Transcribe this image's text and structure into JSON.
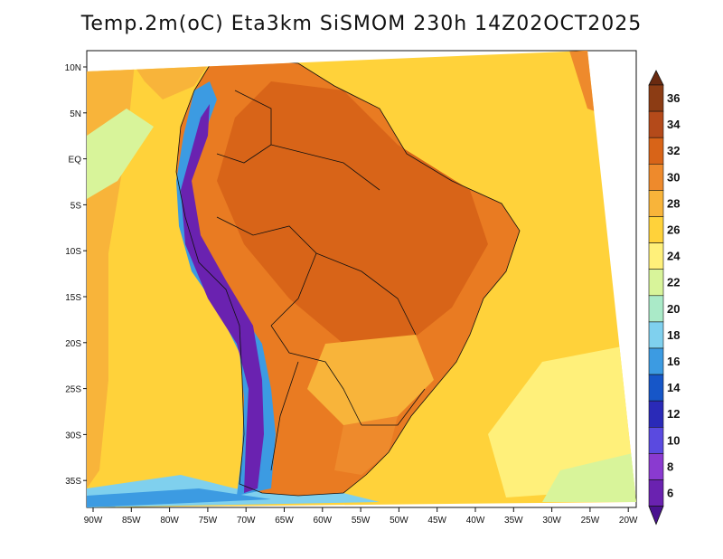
{
  "title": "Temp.2m(oC) Eta3km SiSMOM 230h 14Z02OCT2025",
  "map": {
    "lat_labels": [
      "10N",
      "5N",
      "EQ",
      "5S",
      "10S",
      "15S",
      "20S",
      "25S",
      "30S",
      "35S"
    ],
    "lon_labels": [
      "90W",
      "85W",
      "80W",
      "75W",
      "70W",
      "65W",
      "60W",
      "55W",
      "50W",
      "45W",
      "40W",
      "35W",
      "30W",
      "25W",
      "20W"
    ],
    "colors": {
      "ocean_warm": "#ffd23a",
      "ocean_mild": "#ffe65a",
      "land_hot": "#e97b22",
      "land_hotter": "#d86418",
      "andes_cold": "#6a22b0",
      "coast_cool": "#7fd0ee",
      "border": "#111111"
    }
  },
  "colorbar": {
    "levels": [
      "36",
      "34",
      "32",
      "30",
      "28",
      "26",
      "24",
      "22",
      "20",
      "18",
      "16",
      "14",
      "12",
      "10",
      "8",
      "6"
    ],
    "colors": [
      "#8c3c14",
      "#b44a1a",
      "#d86418",
      "#ee8a2c",
      "#f8b43a",
      "#ffd23a",
      "#fff07a",
      "#d8f49a",
      "#aaeac8",
      "#7fd0ee",
      "#3c9be2",
      "#1656c8",
      "#2a2ab8",
      "#5a4ae0",
      "#8a3ad0",
      "#6a22b0"
    ],
    "top_color": "#6a2a10",
    "bottom_color": "#4a1290"
  }
}
